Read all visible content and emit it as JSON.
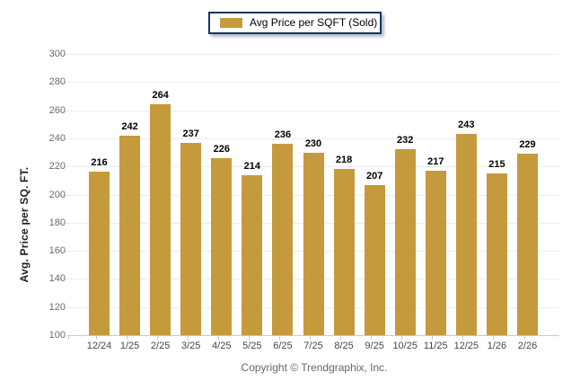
{
  "chart_data": {
    "type": "bar",
    "title": "",
    "xlabel": "",
    "ylabel": "Avg. Price per SQ. FT.",
    "categories": [
      "12/24",
      "1/25",
      "2/25",
      "3/25",
      "4/25",
      "5/25",
      "6/25",
      "7/25",
      "8/25",
      "9/25",
      "10/25",
      "11/25",
      "12/25",
      "1/26",
      "2/26"
    ],
    "values": [
      216,
      242,
      264,
      237,
      226,
      214,
      236,
      230,
      218,
      207,
      232,
      217,
      243,
      215,
      229
    ],
    "ylim": [
      100,
      300
    ],
    "yticks": [
      300,
      280,
      260,
      240,
      220,
      200,
      180,
      160,
      140,
      120,
      100
    ],
    "grid": "horizontal",
    "legend_position": "top",
    "bar_color": "#C49A3C"
  },
  "legend": {
    "label": "Avg Price per SQFT (Sold)",
    "swatch_color": "#C49A3C"
  },
  "footer": {
    "copyright": "Copyright © Trendgraphix, Inc."
  },
  "colors": {
    "bar": "#C49A3C",
    "gridline": "#ececec",
    "axis_line": "#c9c9c9",
    "value_label": "#000000",
    "x_tick_label": "#454555",
    "y_tick_label": "#6b6b6b",
    "legend_border": "#17365D",
    "copyright_text": "#666666"
  }
}
